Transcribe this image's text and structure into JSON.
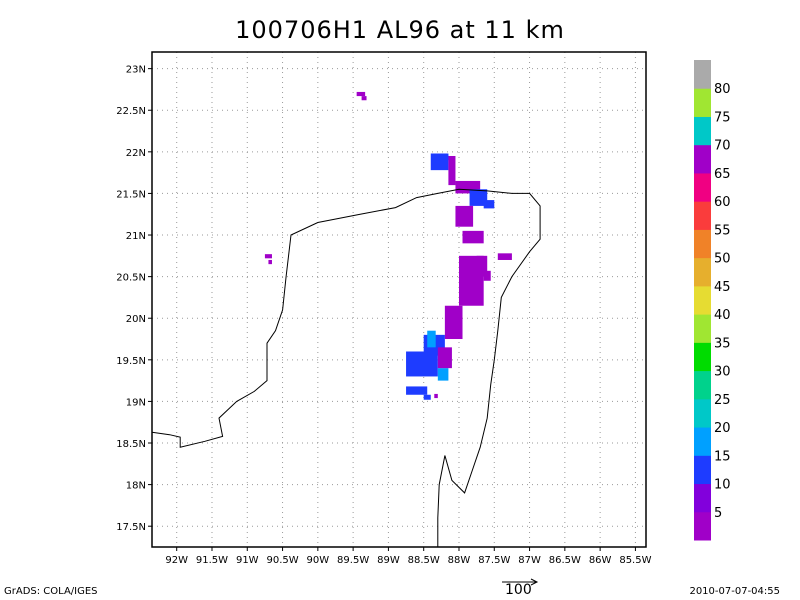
{
  "title": "100706H1 AL96 at 11 km",
  "footer": {
    "left": "GrADS: COLA/IGES",
    "right": "2010-07-07-04:55",
    "vector_ref_label": "100"
  },
  "map": {
    "lon_range": [
      -92.35,
      -85.35
    ],
    "lat_range": [
      17.25,
      23.2
    ],
    "lon_ticks": [
      {
        "v": -92,
        "label": "92W"
      },
      {
        "v": -91.5,
        "label": "91.5W"
      },
      {
        "v": -91,
        "label": "91W"
      },
      {
        "v": -90.5,
        "label": "90.5W"
      },
      {
        "v": -90,
        "label": "90W"
      },
      {
        "v": -89.5,
        "label": "89.5W"
      },
      {
        "v": -89,
        "label": "89W"
      },
      {
        "v": -88.5,
        "label": "88.5W"
      },
      {
        "v": -88,
        "label": "88W"
      },
      {
        "v": -87.5,
        "label": "87.5W"
      },
      {
        "v": -87,
        "label": "87W"
      },
      {
        "v": -86.5,
        "label": "86.5W"
      },
      {
        "v": -86,
        "label": "86W"
      },
      {
        "v": -85.5,
        "label": "85.5W"
      }
    ],
    "lat_ticks": [
      {
        "v": 17.5,
        "label": "17.5N"
      },
      {
        "v": 18,
        "label": "18N"
      },
      {
        "v": 18.5,
        "label": "18.5N"
      },
      {
        "v": 19,
        "label": "19N"
      },
      {
        "v": 19.5,
        "label": "19.5N"
      },
      {
        "v": 20,
        "label": "20N"
      },
      {
        "v": 20.5,
        "label": "20.5N"
      },
      {
        "v": 21,
        "label": "21N"
      },
      {
        "v": 21.5,
        "label": "21.5N"
      },
      {
        "v": 22,
        "label": "22N"
      },
      {
        "v": 22.5,
        "label": "22.5N"
      },
      {
        "v": 23,
        "label": "23N"
      }
    ],
    "coastline": [
      [
        -92.35,
        18.63
      ],
      [
        -92.1,
        18.6
      ],
      [
        -91.95,
        18.57
      ],
      [
        -91.95,
        18.45
      ],
      [
        -91.6,
        18.52
      ],
      [
        -91.35,
        18.58
      ],
      [
        -91.4,
        18.8
      ],
      [
        -91.15,
        19.0
      ],
      [
        -90.9,
        19.12
      ],
      [
        -90.72,
        19.25
      ],
      [
        -90.72,
        19.7
      ],
      [
        -90.6,
        19.85
      ],
      [
        -90.5,
        20.1
      ],
      [
        -90.45,
        20.5
      ],
      [
        -90.38,
        21.0
      ],
      [
        -90.0,
        21.15
      ],
      [
        -89.4,
        21.25
      ],
      [
        -88.9,
        21.33
      ],
      [
        -88.6,
        21.45
      ],
      [
        -88.3,
        21.5
      ],
      [
        -88.0,
        21.55
      ],
      [
        -87.6,
        21.53
      ],
      [
        -87.25,
        21.5
      ],
      [
        -87.0,
        21.5
      ],
      [
        -86.85,
        21.35
      ],
      [
        -86.85,
        20.95
      ],
      [
        -87.0,
        20.8
      ],
      [
        -87.25,
        20.5
      ],
      [
        -87.4,
        20.25
      ],
      [
        -87.45,
        19.85
      ],
      [
        -87.5,
        19.5
      ],
      [
        -87.55,
        19.2
      ],
      [
        -87.6,
        18.8
      ],
      [
        -87.7,
        18.45
      ],
      [
        -87.8,
        18.2
      ],
      [
        -87.92,
        17.9
      ],
      [
        -88.1,
        18.05
      ],
      [
        -88.2,
        18.35
      ],
      [
        -88.28,
        18.0
      ],
      [
        -88.3,
        17.6
      ],
      [
        -88.3,
        17.25
      ]
    ],
    "data_color": "#a000c8",
    "echo_patches": [
      {
        "lon": -89.45,
        "lat": 22.67,
        "w": 0.12,
        "h": 0.05,
        "c": "#a000c8"
      },
      {
        "lon": -89.38,
        "lat": 22.62,
        "w": 0.07,
        "h": 0.05,
        "c": "#a000c8"
      },
      {
        "lon": -90.75,
        "lat": 20.72,
        "w": 0.1,
        "h": 0.05,
        "c": "#a000c8"
      },
      {
        "lon": -90.7,
        "lat": 20.65,
        "w": 0.05,
        "h": 0.05,
        "c": "#a000c8"
      },
      {
        "lon": -88.4,
        "lat": 21.78,
        "w": 0.25,
        "h": 0.2,
        "c": "#1e3cff"
      },
      {
        "lon": -88.25,
        "lat": 21.9,
        "w": 0.1,
        "h": 0.07,
        "c": "#1e3cff"
      },
      {
        "lon": -88.15,
        "lat": 21.6,
        "w": 0.1,
        "h": 0.35,
        "c": "#a000c8"
      },
      {
        "lon": -88.05,
        "lat": 21.5,
        "w": 0.35,
        "h": 0.15,
        "c": "#a000c8"
      },
      {
        "lon": -87.85,
        "lat": 21.35,
        "w": 0.25,
        "h": 0.2,
        "c": "#1e3cff"
      },
      {
        "lon": -87.65,
        "lat": 21.32,
        "w": 0.15,
        "h": 0.1,
        "c": "#1e3cff"
      },
      {
        "lon": -88.05,
        "lat": 21.1,
        "w": 0.25,
        "h": 0.25,
        "c": "#a000c8"
      },
      {
        "lon": -87.95,
        "lat": 20.9,
        "w": 0.3,
        "h": 0.15,
        "c": "#a000c8"
      },
      {
        "lon": -87.45,
        "lat": 20.7,
        "w": 0.2,
        "h": 0.08,
        "c": "#a000c8"
      },
      {
        "lon": -88.0,
        "lat": 20.15,
        "w": 0.35,
        "h": 0.6,
        "c": "#a000c8"
      },
      {
        "lon": -87.75,
        "lat": 20.5,
        "w": 0.15,
        "h": 0.25,
        "c": "#a000c8"
      },
      {
        "lon": -87.65,
        "lat": 20.45,
        "w": 0.1,
        "h": 0.12,
        "c": "#a000c8"
      },
      {
        "lon": -88.2,
        "lat": 19.75,
        "w": 0.25,
        "h": 0.4,
        "c": "#a000c8"
      },
      {
        "lon": -88.75,
        "lat": 19.3,
        "w": 0.45,
        "h": 0.3,
        "c": "#1e3cff"
      },
      {
        "lon": -88.5,
        "lat": 19.55,
        "w": 0.3,
        "h": 0.25,
        "c": "#1e3cff"
      },
      {
        "lon": -88.45,
        "lat": 19.65,
        "w": 0.12,
        "h": 0.2,
        "c": "#00a0ff"
      },
      {
        "lon": -88.3,
        "lat": 19.25,
        "w": 0.15,
        "h": 0.15,
        "c": "#00a0ff"
      },
      {
        "lon": -88.3,
        "lat": 19.4,
        "w": 0.2,
        "h": 0.25,
        "c": "#a000c8"
      },
      {
        "lon": -88.75,
        "lat": 19.08,
        "w": 0.3,
        "h": 0.1,
        "c": "#1e3cff"
      },
      {
        "lon": -88.5,
        "lat": 19.02,
        "w": 0.1,
        "h": 0.06,
        "c": "#1e3cff"
      },
      {
        "lon": -88.35,
        "lat": 19.04,
        "w": 0.05,
        "h": 0.05,
        "c": "#a000c8"
      }
    ]
  },
  "colorbar": {
    "bins": [
      {
        "color": "#a000c8"
      },
      {
        "color": "#8200dc"
      },
      {
        "color": "#1e3cff"
      },
      {
        "color": "#00a0ff"
      },
      {
        "color": "#00c8c8"
      },
      {
        "color": "#00d28c"
      },
      {
        "color": "#00dc00"
      },
      {
        "color": "#a0e632"
      },
      {
        "color": "#e6dc32"
      },
      {
        "color": "#e6af2d"
      },
      {
        "color": "#f08228"
      },
      {
        "color": "#fa3c3c"
      },
      {
        "color": "#f00082"
      },
      {
        "color": "#a000c8"
      },
      {
        "color": "#00c8c8"
      },
      {
        "color": "#a0e632"
      },
      {
        "color": "#aaaaaa"
      }
    ],
    "labels": [
      "5",
      "10",
      "15",
      "20",
      "25",
      "30",
      "35",
      "40",
      "45",
      "50",
      "55",
      "60",
      "65",
      "70",
      "75",
      "80"
    ]
  }
}
